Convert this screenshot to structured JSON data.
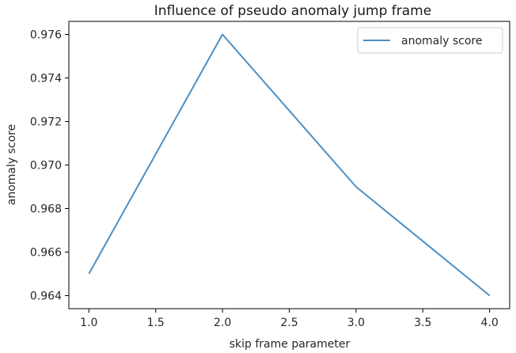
{
  "chart_data": {
    "type": "line",
    "title": "Influence of pseudo anomaly jump frame",
    "xlabel": "skip frame parameter",
    "ylabel": "anomaly score",
    "xlim": [
      0.85,
      4.15
    ],
    "ylim": [
      0.9634,
      0.9766
    ],
    "xticks": [
      1.0,
      1.5,
      2.0,
      2.5,
      3.0,
      3.5,
      4.0
    ],
    "xtick_labels": [
      "1.0",
      "1.5",
      "2.0",
      "2.5",
      "3.0",
      "3.5",
      "4.0"
    ],
    "yticks": [
      0.964,
      0.966,
      0.968,
      0.97,
      0.972,
      0.974,
      0.976
    ],
    "ytick_labels": [
      "0.964",
      "0.966",
      "0.968",
      "0.970",
      "0.972",
      "0.974",
      "0.976"
    ],
    "grid": false,
    "legend_position": "top-right",
    "series": [
      {
        "name": "anomaly score",
        "color": "#4c8fc4",
        "x": [
          1,
          2,
          3,
          4
        ],
        "y": [
          0.965,
          0.976,
          0.969,
          0.964
        ]
      }
    ]
  }
}
